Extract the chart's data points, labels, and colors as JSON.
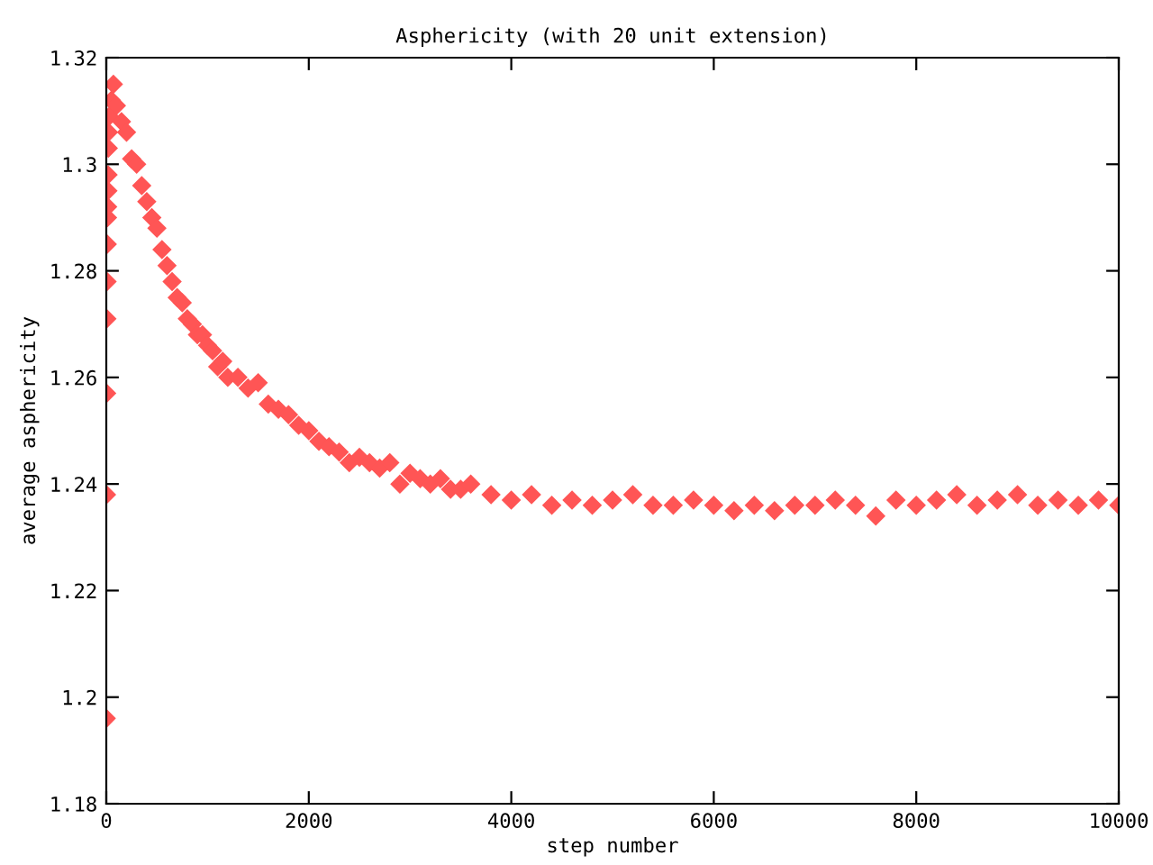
{
  "chart_data": {
    "type": "scatter",
    "title": "Asphericity (with 20 unit extension)",
    "xlabel": "step number",
    "ylabel": "average asphericity",
    "xlim": [
      0,
      10000
    ],
    "xticks": [
      0,
      2000,
      4000,
      6000,
      8000,
      10000
    ],
    "ylim": [
      1.18,
      1.32
    ],
    "yticks": [
      1.18,
      1.2,
      1.22,
      1.24,
      1.26,
      1.28,
      1.3,
      1.32
    ],
    "marker": "diamond",
    "grid": false,
    "series": [
      {
        "color": "#ff5555",
        "x": [
          0,
          2,
          4,
          6,
          8,
          10,
          12,
          14,
          16,
          18,
          20,
          22,
          30,
          50,
          70,
          100,
          150,
          200,
          250,
          300,
          350,
          400,
          450,
          500,
          550,
          600,
          650,
          700,
          750,
          800,
          850,
          900,
          950,
          1000,
          1050,
          1100,
          1150,
          1200,
          1300,
          1400,
          1500,
          1600,
          1700,
          1800,
          1900,
          2000,
          2100,
          2200,
          2300,
          2400,
          2500,
          2600,
          2700,
          2800,
          2900,
          3000,
          3100,
          3200,
          3300,
          3400,
          3500,
          3600,
          3800,
          4000,
          4200,
          4400,
          4600,
          4800,
          5000,
          5200,
          5400,
          5600,
          5800,
          6000,
          6200,
          6400,
          6600,
          6800,
          7000,
          7200,
          7400,
          7600,
          7800,
          8000,
          8200,
          8400,
          8600,
          8800,
          9000,
          9200,
          9400,
          9600,
          9800,
          10000
        ],
        "values": [
          1.196,
          1.238,
          1.257,
          1.271,
          1.278,
          1.285,
          1.29,
          1.292,
          1.295,
          1.298,
          1.303,
          1.306,
          1.309,
          1.312,
          1.315,
          1.311,
          1.308,
          1.306,
          1.301,
          1.3,
          1.296,
          1.293,
          1.29,
          1.288,
          1.284,
          1.281,
          1.278,
          1.275,
          1.274,
          1.271,
          1.27,
          1.268,
          1.268,
          1.266,
          1.265,
          1.262,
          1.263,
          1.26,
          1.26,
          1.258,
          1.259,
          1.255,
          1.254,
          1.253,
          1.251,
          1.25,
          1.248,
          1.247,
          1.246,
          1.244,
          1.245,
          1.244,
          1.243,
          1.244,
          1.24,
          1.242,
          1.241,
          1.24,
          1.241,
          1.239,
          1.239,
          1.24,
          1.238,
          1.237,
          1.238,
          1.236,
          1.237,
          1.236,
          1.237,
          1.238,
          1.236,
          1.236,
          1.237,
          1.236,
          1.235,
          1.236,
          1.235,
          1.236,
          1.236,
          1.237,
          1.236,
          1.234,
          1.237,
          1.236,
          1.237,
          1.238,
          1.236,
          1.237,
          1.238,
          1.236,
          1.237,
          1.236,
          1.237,
          1.236
        ]
      }
    ]
  }
}
